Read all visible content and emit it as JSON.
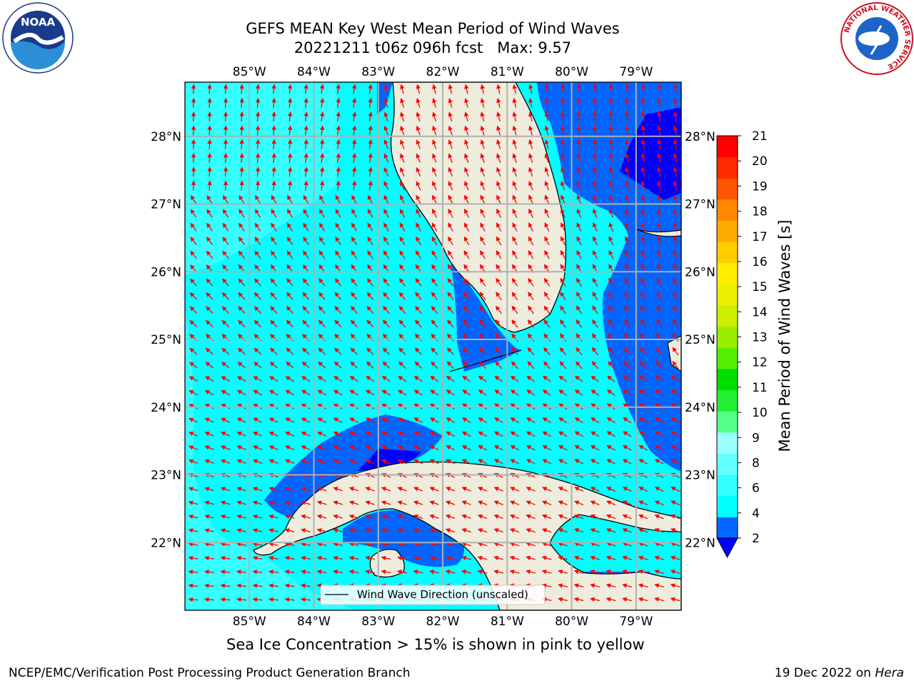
{
  "title": {
    "line1": "GEFS MEAN Key West Mean Period of Wind Waves",
    "line2": "20221211 t06z 096h fcst   Max: 9.57"
  },
  "map": {
    "lon_labels": [
      "85°W",
      "84°W",
      "83°W",
      "82°W",
      "81°W",
      "80°W",
      "79°W"
    ],
    "lat_labels": [
      "28°N",
      "27°N",
      "26°N",
      "25°N",
      "24°N",
      "23°N",
      "22°N"
    ],
    "legend": "Wind Wave Direction (unscaled)",
    "extent": {
      "lon": [
        -86,
        -78.3
      ],
      "lat": [
        21,
        28.8
      ]
    },
    "arrow_color": "#ff0000",
    "land_color": "#eeecdc",
    "grid_color": "#b0b0b0"
  },
  "colorbar": {
    "label": "Mean Period of Wind Waves [s]",
    "ticks": [
      "2",
      "4",
      "6",
      "8",
      "9",
      "10",
      "11",
      "12",
      "13",
      "14",
      "15",
      "16",
      "17",
      "18",
      "19",
      "20",
      "21"
    ],
    "colors": [
      "#0066ff",
      "#00ffff",
      "#33ffff",
      "#66ffff",
      "#99ffff",
      "#55ff88",
      "#22ee33",
      "#00dd00",
      "#55ee00",
      "#99ee00",
      "#ccee00",
      "#eeee00",
      "#ffee00",
      "#ffcc00",
      "#ffaa00",
      "#ff8800",
      "#ff5500",
      "#ff2a00",
      "#ff0000"
    ],
    "under_color": "#0000ff"
  },
  "subtitle": "Sea Ice Concentration > 15% is shown in pink to yellow",
  "footer": {
    "left": "NCEP/EMC/Verification Post Processing Product Generation Branch",
    "right_prefix": "19 Dec 2022 on ",
    "right_host": "Hera"
  },
  "logos": {
    "noaa": "NOAA",
    "nws_ring": "NATIONAL WEATHER SERVICE"
  }
}
